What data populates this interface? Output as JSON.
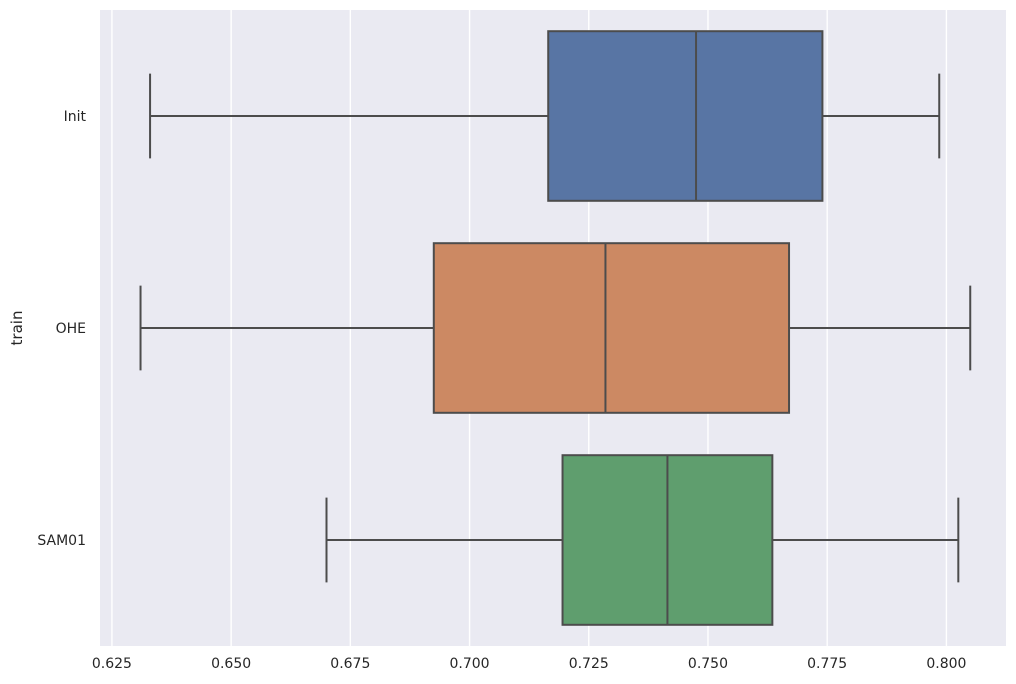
{
  "chart_data": {
    "type": "boxplot",
    "orientation": "horizontal",
    "title": "",
    "xlabel": "",
    "ylabel": "train",
    "xlim": [
      0.6225,
      0.8125
    ],
    "xticks": [
      "0.625",
      "0.650",
      "0.675",
      "0.700",
      "0.725",
      "0.750",
      "0.775",
      "0.800"
    ],
    "xtick_values": [
      0.625,
      0.65,
      0.675,
      0.7,
      0.725,
      0.75,
      0.775,
      0.8
    ],
    "grid": true,
    "categories": [
      "Init",
      "OHE",
      "SAM01"
    ],
    "series": [
      {
        "category": "Init",
        "whisker_low": 0.633,
        "q1": 0.7165,
        "median": 0.7475,
        "q3": 0.774,
        "whisker_high": 0.7985,
        "color": "#5875a4"
      },
      {
        "category": "OHE",
        "whisker_low": 0.631,
        "q1": 0.6925,
        "median": 0.7285,
        "q3": 0.767,
        "whisker_high": 0.805,
        "color": "#cc8963"
      },
      {
        "category": "SAM01",
        "whisker_low": 0.67,
        "q1": 0.7195,
        "median": 0.7415,
        "q3": 0.7635,
        "whisker_high": 0.8025,
        "color": "#5f9e6e"
      }
    ],
    "colors": {
      "background": "#eaeaf2",
      "grid": "#ffffff",
      "line": "#4c4c4c",
      "text": "#262626"
    }
  }
}
